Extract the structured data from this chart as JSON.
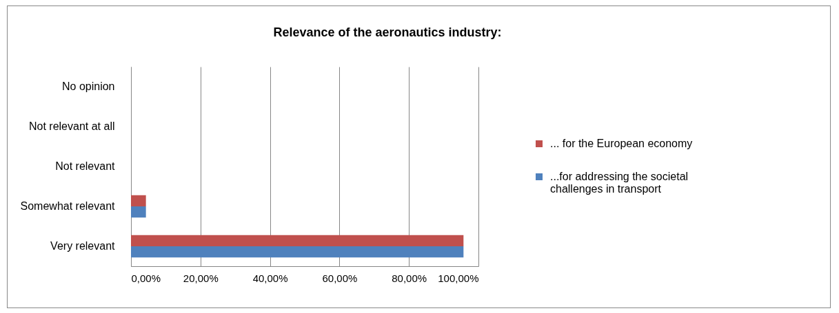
{
  "chart_data": {
    "type": "bar",
    "orientation": "horizontal",
    "title": "Relevance of the aeronautics industry:",
    "categories": [
      "No opinion",
      "Not relevant at all",
      "Not relevant",
      "Somewhat relevant",
      "Very relevant"
    ],
    "series": [
      {
        "name": "... for the European economy",
        "color": "#c0504d",
        "values": [
          0,
          0,
          0,
          4.3,
          95.7
        ]
      },
      {
        "name": "...for addressing the societal challenges in transport",
        "color": "#4f81bd",
        "values": [
          0,
          0,
          0,
          4.3,
          95.7
        ]
      }
    ],
    "xlim": [
      0,
      100
    ],
    "xticks": [
      {
        "value": 0,
        "label": "0,00%"
      },
      {
        "value": 20,
        "label": "20,00%"
      },
      {
        "value": 40,
        "label": "40,00%"
      },
      {
        "value": 60,
        "label": "60,00%"
      },
      {
        "value": 80,
        "label": "80,00%"
      },
      {
        "value": 100,
        "label": "100,00%"
      }
    ],
    "grid": "x",
    "legend": "right"
  }
}
